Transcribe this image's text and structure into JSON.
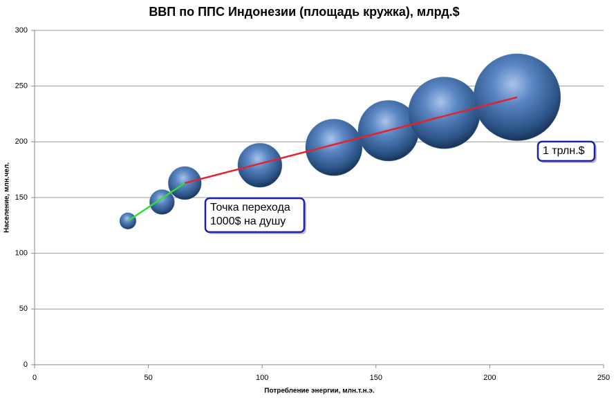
{
  "chart_data": {
    "type": "bubble",
    "title": "ВВП по ППС Индонезии (площадь кружка), млрд.$",
    "x_label": "Потребление энергии, млн.т.н.э.",
    "y_label": "Население, млн.чел.",
    "xlim": [
      0,
      250
    ],
    "xticks": [
      0,
      50,
      100,
      150,
      200,
      250
    ],
    "ylim": [
      0,
      300
    ],
    "yticks": [
      0,
      50,
      100,
      150,
      200,
      250,
      300
    ],
    "grid": true,
    "color": "#4f81bd",
    "x": [
      41,
      56,
      66,
      99,
      131.5,
      155.5,
      180,
      212
    ],
    "values": [
      129,
      146,
      163,
      179,
      195,
      210,
      226,
      240
    ],
    "sizes": [
      36,
      82,
      145,
      258,
      424,
      488,
      681,
      1000
    ],
    "lines": [
      {
        "color": "#33dd33",
        "x": [
          41,
          66
        ],
        "y": [
          129,
          163
        ]
      },
      {
        "color": "#e8202a",
        "x": [
          66,
          212
        ],
        "y": [
          163,
          240
        ]
      }
    ],
    "annotations": [
      {
        "lines": [
          "Точка перехода",
          "1000$ на душу"
        ]
      },
      {
        "lines": [
          "1 трлн.$"
        ]
      }
    ]
  }
}
